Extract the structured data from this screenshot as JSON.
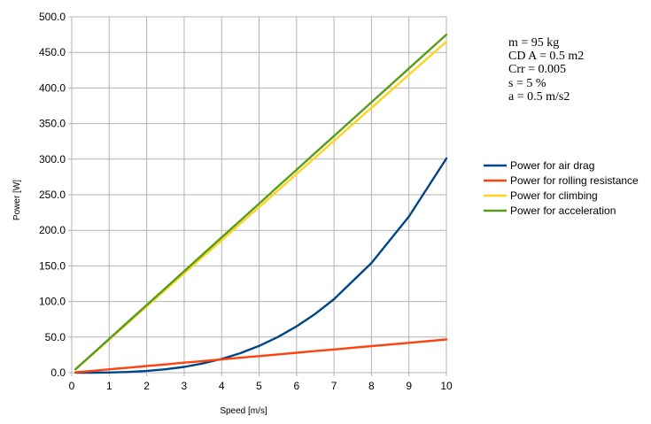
{
  "chart_data": {
    "type": "line",
    "title": "",
    "xlabel": "Speed [m/s]",
    "ylabel": "Power [W]",
    "xlim": [
      0,
      10
    ],
    "ylim": [
      0,
      500
    ],
    "x_ticks": [
      0,
      1,
      2,
      3,
      4,
      5,
      6,
      7,
      8,
      9,
      10
    ],
    "y_ticks": [
      "0.0",
      "50.0",
      "100.0",
      "150.0",
      "200.0",
      "250.0",
      "300.0",
      "350.0",
      "400.0",
      "450.0",
      "500.0"
    ],
    "grid": true,
    "legend_position": "right",
    "x": [
      0.1,
      0.5,
      1,
      1.5,
      2,
      2.5,
      3,
      3.5,
      4,
      4.5,
      5,
      5.5,
      6,
      6.5,
      7,
      8,
      9,
      10
    ],
    "series": [
      {
        "name": "Power for air drag",
        "color": "#004586",
        "values": [
          0.0,
          0.04,
          0.3,
          1.0,
          2.4,
          4.7,
          8.1,
          12.9,
          19.3,
          27.4,
          37.6,
          50.0,
          65.0,
          82.6,
          103.2,
          154.1,
          219.4,
          301.0
        ]
      },
      {
        "name": "Power for rolling resistance",
        "color": "#ff420e",
        "values": [
          0.47,
          2.3,
          4.7,
          7.0,
          9.3,
          11.6,
          14.0,
          16.3,
          18.6,
          21.0,
          23.3,
          25.6,
          28.0,
          30.3,
          32.6,
          37.3,
          41.9,
          46.6
        ]
      },
      {
        "name": "Power for climbing",
        "color": "#ffd320",
        "values": [
          4.7,
          23.3,
          46.5,
          69.8,
          93.0,
          116.3,
          139.6,
          162.8,
          186.1,
          209.4,
          232.6,
          255.9,
          279.2,
          302.4,
          325.7,
          372.2,
          418.7,
          465.2
        ]
      },
      {
        "name": "Power for acceleration",
        "color": "#579d1c",
        "values": [
          4.75,
          23.8,
          47.5,
          71.3,
          95.0,
          118.8,
          142.5,
          166.3,
          190.0,
          213.8,
          237.5,
          261.3,
          285.0,
          308.8,
          332.5,
          380.0,
          427.5,
          475.0
        ]
      }
    ],
    "annotations": [
      "m = 95 kg",
      "CD A = 0.5 m2",
      "Crr = 0.005",
      "s = 5 %",
      "a = 0.5 m/s2"
    ]
  }
}
